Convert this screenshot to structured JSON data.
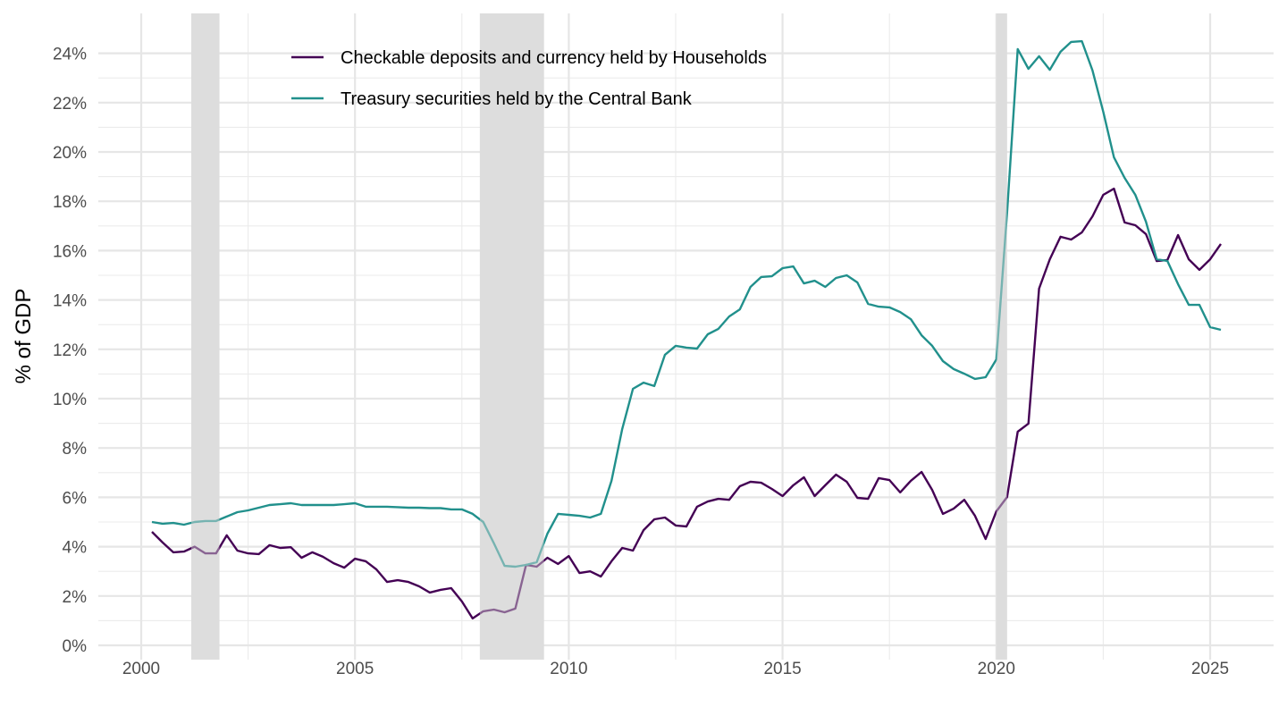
{
  "chart_data": {
    "type": "line",
    "title": "",
    "xlabel": "",
    "ylabel": "% of GDP",
    "xlim": [
      1999.8,
      2027.2
    ],
    "ylim": [
      -0.2,
      24.9
    ],
    "x_ticks": [
      2000,
      2005,
      2010,
      2015,
      2020,
      2025
    ],
    "x_tick_labels": [
      "2000",
      "2005",
      "2010",
      "2015",
      "2020",
      "2025"
    ],
    "y_ticks": [
      0,
      2,
      4,
      6,
      8,
      10,
      12,
      14,
      16,
      18,
      20,
      22,
      24
    ],
    "y_tick_labels": [
      "0%",
      "2%",
      "4%",
      "6%",
      "8%",
      "10%",
      "12%",
      "14%",
      "16%",
      "18%",
      "20%",
      "22%",
      "24%"
    ],
    "grid": true,
    "legend_position": "top-left-inside",
    "recessions": [
      {
        "start": 2001.17,
        "end": 2001.83
      },
      {
        "start": 2007.92,
        "end": 2009.42
      },
      {
        "start": 2020.0,
        "end": 2020.25
      }
    ],
    "recession_color": "#dddddd",
    "x_start": 2000.25,
    "x_step": 0.25,
    "series": [
      {
        "name": "Checkable deposits and currency held by Households",
        "color": "#440154",
        "values": [
          4.6,
          4.17,
          3.77,
          3.8,
          4.0,
          3.73,
          3.73,
          4.46,
          3.84,
          3.73,
          3.7,
          4.06,
          3.95,
          3.98,
          3.55,
          3.77,
          3.59,
          3.33,
          3.15,
          3.51,
          3.41,
          3.08,
          2.57,
          2.64,
          2.57,
          2.39,
          2.14,
          2.25,
          2.32,
          1.78,
          1.09,
          1.38,
          1.45,
          1.34,
          1.49,
          3.26,
          3.19,
          3.55,
          3.3,
          3.62,
          2.93,
          3.0,
          2.79,
          3.41,
          3.95,
          3.84,
          4.67,
          5.11,
          5.18,
          4.86,
          4.82,
          5.62,
          5.83,
          5.94,
          5.9,
          6.45,
          6.63,
          6.59,
          6.34,
          6.05,
          6.49,
          6.81,
          6.05,
          6.49,
          6.92,
          6.63,
          5.98,
          5.94,
          6.78,
          6.7,
          6.2,
          6.67,
          7.03,
          6.3,
          5.33,
          5.54,
          5.9,
          5.25,
          4.31,
          5.43,
          6.01,
          8.66,
          8.99,
          14.46,
          15.65,
          16.56,
          16.45,
          16.74,
          17.39,
          18.26,
          18.51,
          17.14,
          17.03,
          16.67,
          15.58,
          15.62,
          16.63,
          15.65,
          15.22,
          15.65,
          16.27
        ]
      },
      {
        "name": "Treasury securities held by the Central Bank",
        "color": "#21908c",
        "values": [
          5.0,
          4.93,
          4.96,
          4.89,
          5.0,
          5.04,
          5.04,
          5.22,
          5.4,
          5.47,
          5.58,
          5.69,
          5.72,
          5.76,
          5.69,
          5.69,
          5.69,
          5.69,
          5.72,
          5.76,
          5.62,
          5.62,
          5.62,
          5.6,
          5.58,
          5.58,
          5.56,
          5.56,
          5.51,
          5.51,
          5.33,
          5.0,
          4.13,
          3.22,
          3.19,
          3.26,
          3.37,
          4.53,
          5.33,
          5.29,
          5.25,
          5.18,
          5.33,
          6.67,
          8.77,
          10.4,
          10.65,
          10.51,
          11.78,
          12.14,
          12.07,
          12.03,
          12.61,
          12.83,
          13.33,
          13.62,
          14.53,
          14.93,
          14.96,
          15.29,
          15.36,
          14.67,
          14.78,
          14.53,
          14.89,
          15.0,
          14.71,
          13.84,
          13.73,
          13.7,
          13.51,
          13.22,
          12.57,
          12.14,
          11.52,
          11.2,
          11.01,
          10.8,
          10.87,
          11.59,
          17.54,
          24.17,
          23.37,
          23.88,
          23.33,
          24.06,
          24.46,
          24.49,
          23.3,
          21.63,
          19.78,
          18.95,
          18.26,
          17.17,
          15.65,
          15.58,
          14.64,
          13.8,
          13.8,
          12.9,
          12.79
        ]
      }
    ]
  }
}
